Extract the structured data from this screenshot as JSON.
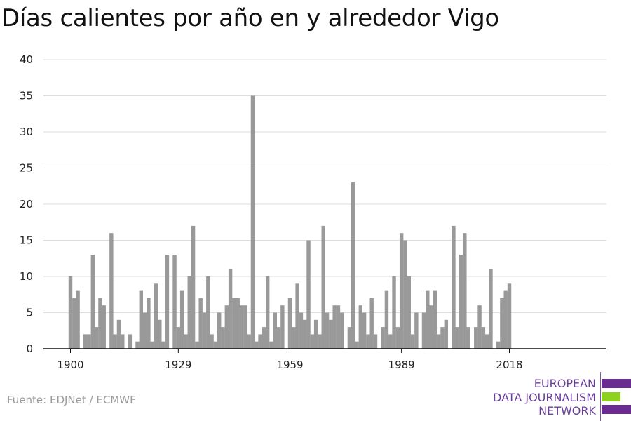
{
  "title": "Días calientes por año en y alrededor Vigo",
  "source": "Fuente: EDJNet / ECMWF",
  "logo": {
    "lines": [
      "EUROPEAN",
      "DATA JOURNALISM",
      "NETWORK"
    ],
    "colors": [
      "#6a2c91",
      "#8cd21e",
      "#6a2c91"
    ]
  },
  "chart_data": {
    "type": "bar",
    "title": "Días calientes por año en y alrededor Vigo",
    "xlabel": "",
    "ylabel": "",
    "x": [
      1900,
      1901,
      1902,
      1903,
      1904,
      1905,
      1906,
      1907,
      1908,
      1909,
      1910,
      1911,
      1912,
      1913,
      1914,
      1915,
      1916,
      1917,
      1918,
      1919,
      1920,
      1921,
      1922,
      1923,
      1924,
      1925,
      1926,
      1927,
      1928,
      1929,
      1930,
      1931,
      1932,
      1933,
      1934,
      1935,
      1936,
      1937,
      1938,
      1939,
      1940,
      1941,
      1942,
      1943,
      1944,
      1945,
      1946,
      1947,
      1948,
      1949,
      1950,
      1951,
      1952,
      1953,
      1954,
      1955,
      1956,
      1957,
      1958,
      1959,
      1960,
      1961,
      1962,
      1963,
      1964,
      1965,
      1966,
      1967,
      1968,
      1969,
      1970,
      1971,
      1972,
      1973,
      1974,
      1975,
      1976,
      1977,
      1978,
      1979,
      1980,
      1981,
      1982,
      1983,
      1984,
      1985,
      1986,
      1987,
      1988,
      1989,
      1990,
      1991,
      1992,
      1993,
      1994,
      1995,
      1996,
      1997,
      1998,
      1999,
      2000,
      2001,
      2002,
      2003,
      2004,
      2005,
      2006,
      2007,
      2008,
      2009,
      2010,
      2011,
      2012,
      2013,
      2014,
      2015,
      2016,
      2017,
      2018
    ],
    "values": [
      10,
      7,
      8,
      0,
      2,
      2,
      13,
      3,
      7,
      6,
      0,
      16,
      2,
      4,
      2,
      0,
      2,
      0,
      1,
      8,
      5,
      7,
      1,
      9,
      4,
      1,
      13,
      0,
      13,
      3,
      8,
      2,
      10,
      17,
      1,
      7,
      5,
      10,
      2,
      1,
      5,
      3,
      6,
      11,
      7,
      7,
      6,
      6,
      2,
      35,
      1,
      2,
      3,
      10,
      1,
      5,
      3,
      6,
      0,
      7,
      3,
      9,
      5,
      4,
      15,
      2,
      4,
      2,
      17,
      5,
      4,
      6,
      6,
      5,
      0,
      3,
      23,
      1,
      6,
      5,
      2,
      7,
      2,
      0,
      3,
      8,
      2,
      10,
      3,
      16,
      15,
      10,
      2,
      5,
      0,
      5,
      8,
      6,
      8,
      2,
      3,
      4,
      0,
      17,
      3,
      13,
      16,
      3,
      0,
      3,
      6,
      3,
      2,
      11,
      0,
      1,
      7,
      8,
      9
    ],
    "ylim": [
      0,
      40
    ],
    "yticks": [
      0,
      5,
      10,
      15,
      20,
      25,
      30,
      35,
      40
    ],
    "xticks": [
      1900,
      1929,
      1959,
      1989,
      2018
    ],
    "bar_color": "#999999",
    "grid": true
  }
}
